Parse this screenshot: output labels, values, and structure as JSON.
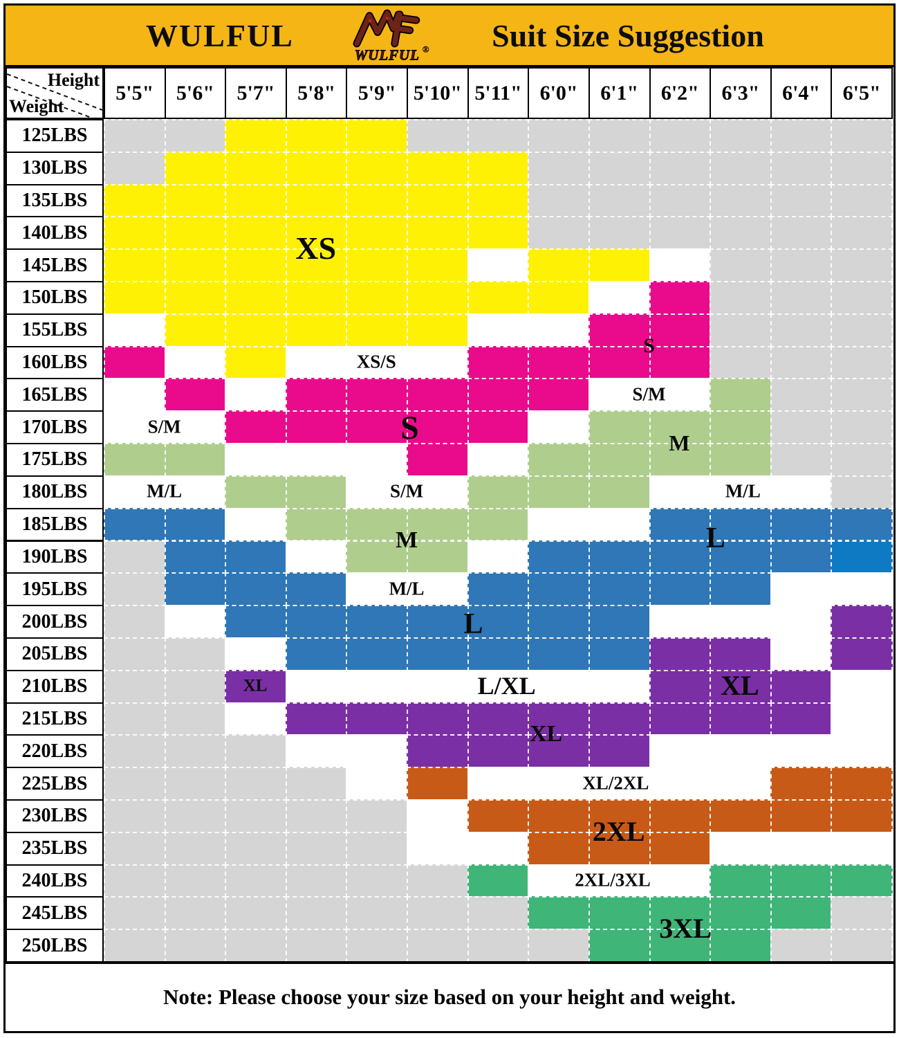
{
  "header": {
    "brand": "WULFUL",
    "title": "Suit Size Suggestion",
    "logo": {
      "text": "WULFUL",
      "mark": "®"
    }
  },
  "table": {
    "corner": {
      "top_label": "Height",
      "bottom_label": "Weight"
    }
  },
  "colors": {
    "XS": "#FFF104",
    "S": "#EA0B8C",
    "M": "#AFCE8E",
    "L": "#2F77B6",
    "L2": "#0E7AC4",
    "XL": "#7B2FA5",
    "2XL": "#C85A17",
    "3XL": "#3FB578",
    "NA": "#D5D5D5",
    "-": "#FFFFFF",
    "header_band": "#F5B515",
    "logo_maroon": "#6E2317"
  },
  "chart_data": {
    "type": "heatmap",
    "title": "Suit Size Suggestion",
    "xlabel": "Height",
    "ylabel": "Weight",
    "x": [
      "5'5\"",
      "5'6\"",
      "5'7\"",
      "5'8\"",
      "5'9\"",
      "5'10\"",
      "5'11\"",
      "6'0\"",
      "6'1\"",
      "6'2\"",
      "6'3\"",
      "6'4\"",
      "6'5\""
    ],
    "y": [
      "125LBS",
      "130LBS",
      "135LBS",
      "140LBS",
      "145LBS",
      "150LBS",
      "155LBS",
      "160LBS",
      "165LBS",
      "170LBS",
      "175LBS",
      "180LBS",
      "185LBS",
      "190LBS",
      "195LBS",
      "200LBS",
      "205LBS",
      "210LBS",
      "215LBS",
      "220LBS",
      "225LBS",
      "230LBS",
      "235LBS",
      "240LBS",
      "245LBS",
      "250LBS"
    ],
    "code_meaning": {
      "XS": "XS size (yellow)",
      "S": "S size (magenta)",
      "M": "M size (light green)",
      "L": "L size (blue)",
      "L2": "L size (bright blue cell)",
      "XL": "XL size (purple)",
      "2XL": "2XL size (orange)",
      "3XL": "3XL size (green)",
      "-": "between sizes (white, see overlay label)",
      "NA": "not suggested (gray)"
    },
    "cells": [
      [
        "NA",
        "NA",
        "XS",
        "XS",
        "XS",
        "NA",
        "NA",
        "NA",
        "NA",
        "NA",
        "NA",
        "NA",
        "NA"
      ],
      [
        "NA",
        "XS",
        "XS",
        "XS",
        "XS",
        "XS",
        "XS",
        "NA",
        "NA",
        "NA",
        "NA",
        "NA",
        "NA"
      ],
      [
        "XS",
        "XS",
        "XS",
        "XS",
        "XS",
        "XS",
        "XS",
        "NA",
        "NA",
        "NA",
        "NA",
        "NA",
        "NA"
      ],
      [
        "XS",
        "XS",
        "XS",
        "XS",
        "XS",
        "XS",
        "XS",
        "NA",
        "NA",
        "NA",
        "NA",
        "NA",
        "NA"
      ],
      [
        "XS",
        "XS",
        "XS",
        "XS",
        "XS",
        "XS",
        "-",
        "XS",
        "XS",
        "-",
        "NA",
        "NA",
        "NA"
      ],
      [
        "XS",
        "XS",
        "XS",
        "XS",
        "XS",
        "XS",
        "XS",
        "XS",
        "-",
        "S",
        "NA",
        "NA",
        "NA"
      ],
      [
        "-",
        "XS",
        "XS",
        "XS",
        "XS",
        "XS",
        "-",
        "-",
        "S",
        "S",
        "NA",
        "NA",
        "NA"
      ],
      [
        "S",
        "-",
        "XS",
        "-",
        "-",
        "-",
        "S",
        "S",
        "S",
        "S",
        "NA",
        "NA",
        "NA"
      ],
      [
        "-",
        "S",
        "-",
        "S",
        "S",
        "S",
        "S",
        "S",
        "-",
        "-",
        "M",
        "NA",
        "NA"
      ],
      [
        "-",
        "-",
        "S",
        "S",
        "S",
        "S",
        "S",
        "-",
        "M",
        "M",
        "M",
        "NA",
        "NA"
      ],
      [
        "M",
        "M",
        "-",
        "-",
        "-",
        "S",
        "-",
        "M",
        "M",
        "M",
        "M",
        "NA",
        "NA"
      ],
      [
        "-",
        "-",
        "M",
        "M",
        "-",
        "-",
        "M",
        "M",
        "M",
        "-",
        "-",
        "-",
        "NA"
      ],
      [
        "L",
        "L",
        "-",
        "M",
        "M",
        "M",
        "M",
        "-",
        "-",
        "L",
        "L",
        "L",
        "L"
      ],
      [
        "NA",
        "L",
        "L",
        "-",
        "M",
        "M",
        "-",
        "L",
        "L",
        "L",
        "L",
        "L",
        "L2"
      ],
      [
        "NA",
        "L",
        "L",
        "L",
        "-",
        "-",
        "L",
        "L",
        "L",
        "L",
        "L",
        "-",
        "-"
      ],
      [
        "NA",
        "-",
        "L",
        "L",
        "L",
        "L",
        "L",
        "L",
        "L",
        "-",
        "-",
        "-",
        "XL"
      ],
      [
        "NA",
        "NA",
        "-",
        "L",
        "L",
        "L",
        "L",
        "L",
        "L",
        "XL",
        "XL",
        "-",
        "XL"
      ],
      [
        "NA",
        "NA",
        "XL",
        "-",
        "-",
        "-",
        "-",
        "-",
        "-",
        "XL",
        "XL",
        "XL",
        "-"
      ],
      [
        "NA",
        "NA",
        "-",
        "XL",
        "XL",
        "XL",
        "XL",
        "XL",
        "XL",
        "XL",
        "XL",
        "XL",
        "-"
      ],
      [
        "NA",
        "NA",
        "NA",
        "-",
        "-",
        "XL",
        "XL",
        "XL",
        "XL",
        "-",
        "-",
        "-",
        "-"
      ],
      [
        "NA",
        "NA",
        "NA",
        "NA",
        "-",
        "2XL",
        "-",
        "-",
        "-",
        "-",
        "-",
        "2XL",
        "2XL"
      ],
      [
        "NA",
        "NA",
        "NA",
        "NA",
        "NA",
        "-",
        "2XL",
        "2XL",
        "2XL",
        "2XL",
        "2XL",
        "2XL",
        "2XL"
      ],
      [
        "NA",
        "NA",
        "NA",
        "NA",
        "NA",
        "-",
        "-",
        "2XL",
        "2XL",
        "2XL",
        "-",
        "-",
        "-"
      ],
      [
        "NA",
        "NA",
        "NA",
        "NA",
        "NA",
        "NA",
        "3XL",
        "-",
        "-",
        "-",
        "3XL",
        "3XL",
        "3XL"
      ],
      [
        "NA",
        "NA",
        "NA",
        "NA",
        "NA",
        "NA",
        "NA",
        "3XL",
        "3XL",
        "3XL",
        "3XL",
        "3XL",
        "NA"
      ],
      [
        "NA",
        "NA",
        "NA",
        "NA",
        "NA",
        "NA",
        "NA",
        "NA",
        "3XL",
        "3XL",
        "3XL",
        "NA",
        "NA"
      ]
    ],
    "annotations": [
      {
        "text": "XS",
        "col": 3.5,
        "row": 4.0,
        "fs": 46
      },
      {
        "text": "XS/S",
        "col": 4.5,
        "row": 7.5,
        "fs": 27
      },
      {
        "text": "S",
        "col": 9.0,
        "row": 7.0,
        "fs": 30
      },
      {
        "text": "S/M",
        "col": 9.0,
        "row": 8.5,
        "fs": 27
      },
      {
        "text": "S",
        "col": 5.05,
        "row": 9.55,
        "fs": 48
      },
      {
        "text": "S/M",
        "col": 1.0,
        "row": 9.5,
        "fs": 27
      },
      {
        "text": "M",
        "col": 9.5,
        "row": 10.0,
        "fs": 32
      },
      {
        "text": "M/L",
        "col": 1.0,
        "row": 11.5,
        "fs": 27
      },
      {
        "text": "S/M",
        "col": 5.0,
        "row": 11.5,
        "fs": 27
      },
      {
        "text": "M/L",
        "col": 10.55,
        "row": 11.5,
        "fs": 27
      },
      {
        "text": "M",
        "col": 5.0,
        "row": 13.0,
        "fs": 34
      },
      {
        "text": "M/L",
        "col": 5.0,
        "row": 14.5,
        "fs": 27
      },
      {
        "text": "L",
        "col": 10.1,
        "row": 12.95,
        "fs": 42
      },
      {
        "text": "L",
        "col": 6.1,
        "row": 15.6,
        "fs": 42
      },
      {
        "text": "XL",
        "col": 2.5,
        "row": 17.5,
        "fs": 25
      },
      {
        "text": "L/XL",
        "col": 6.65,
        "row": 17.5,
        "fs": 36
      },
      {
        "text": "XL",
        "col": 10.5,
        "row": 17.5,
        "fs": 40
      },
      {
        "text": "XL",
        "col": 7.3,
        "row": 19.0,
        "fs": 34
      },
      {
        "text": "XL/2XL",
        "col": 8.45,
        "row": 20.5,
        "fs": 27
      },
      {
        "text": "2XL",
        "col": 8.5,
        "row": 22.0,
        "fs": 40
      },
      {
        "text": "2XL/3XL",
        "col": 8.4,
        "row": 23.5,
        "fs": 27
      },
      {
        "text": "3XL",
        "col": 9.6,
        "row": 25.0,
        "fs": 40
      }
    ]
  },
  "note": {
    "text": "Note: Please choose your size based on your height and weight."
  }
}
